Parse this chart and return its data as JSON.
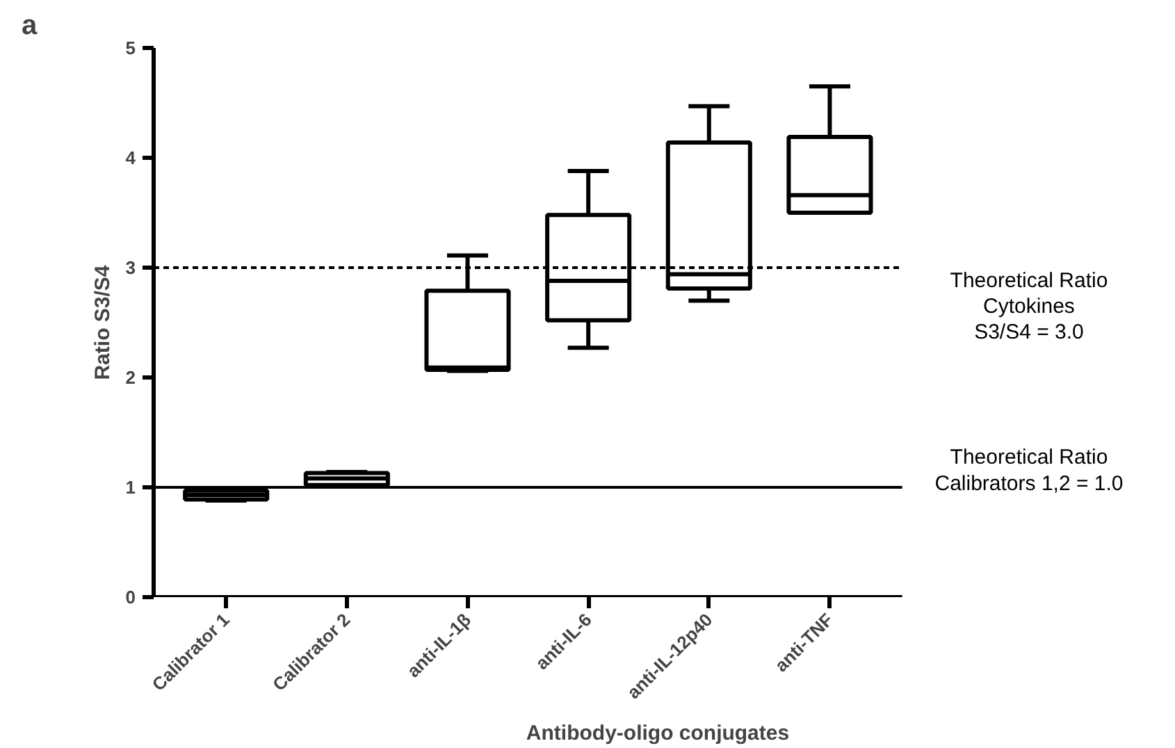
{
  "chart_data": {
    "type": "box",
    "annotations": [
      "a"
    ],
    "xlabel": "Antibody-oligo conjugates",
    "ylabel": "Ratio S3/S4",
    "categories": [
      "Calibrator 1",
      "Calibrator 2",
      "anti-IL-1β",
      "anti-IL-6",
      "anti-IL-12p40",
      "anti-TNF"
    ],
    "boxes": [
      {
        "low": 0.88,
        "q1": 0.89,
        "median": 0.93,
        "q3": 0.97,
        "high": 0.99
      },
      {
        "low": 1.01,
        "q1": 1.02,
        "median": 1.08,
        "q3": 1.13,
        "high": 1.14
      },
      {
        "low": 2.06,
        "q1": 2.07,
        "median": 2.09,
        "q3": 2.79,
        "high": 3.11
      },
      {
        "low": 2.27,
        "q1": 2.52,
        "median": 2.88,
        "q3": 3.48,
        "high": 3.88
      },
      {
        "low": 2.7,
        "q1": 2.81,
        "median": 2.94,
        "q3": 4.14,
        "high": 4.47
      },
      {
        "low": 3.5,
        "q1": 3.5,
        "median": 3.66,
        "q3": 4.19,
        "high": 4.65
      }
    ],
    "color": "#000000",
    "ylim": [
      0,
      5
    ],
    "yticks": [
      0,
      1,
      2,
      3,
      4,
      5
    ],
    "grid": false,
    "ref_lines": [
      {
        "axis": "y",
        "value": 3,
        "label": "Theoretical Ratio\nCytokines\nS3/S4 = 3.0",
        "line_style": "dashed",
        "color": "#000000"
      },
      {
        "axis": "y",
        "value": 1,
        "label": "Theoretical Ratio\nCalibrators 1,2 = 1.0",
        "line_style": "solid",
        "color": "#000000"
      }
    ]
  }
}
